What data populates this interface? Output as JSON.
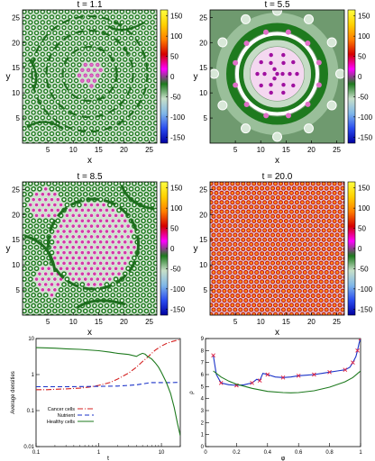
{
  "heatmaps": [
    {
      "title": "t = 1.1",
      "xlabel": "x",
      "ylabel": "y",
      "xticks": [
        "5",
        "10",
        "15",
        "20",
        "25"
      ],
      "yticks": [
        "5",
        "10",
        "15",
        "20",
        "25"
      ],
      "cbar_ticks": [
        "150",
        "100",
        "50",
        "0",
        "-50",
        "-100",
        "-150"
      ],
      "pattern": "early"
    },
    {
      "title": "t = 5.5",
      "xlabel": "x",
      "ylabel": "y",
      "xticks": [
        "5",
        "10",
        "15",
        "20",
        "25"
      ],
      "yticks": [
        "5",
        "10",
        "15",
        "20",
        "25"
      ],
      "cbar_ticks": [
        "150",
        "100",
        "50",
        "0",
        "-50",
        "-100",
        "-150"
      ],
      "pattern": "ring"
    },
    {
      "title": "t = 8.5",
      "xlabel": "x",
      "ylabel": "y",
      "xticks": [
        "5",
        "10",
        "15",
        "20",
        "25"
      ],
      "yticks": [
        "5",
        "10",
        "15",
        "20",
        "25"
      ],
      "cbar_ticks": [
        "150",
        "100",
        "50",
        "0",
        "-50",
        "-100",
        "-150"
      ],
      "pattern": "mixed"
    },
    {
      "title": "t = 20.0",
      "xlabel": "x",
      "ylabel": "y",
      "xticks": [
        "5",
        "10",
        "15",
        "20",
        "25"
      ],
      "yticks": [
        "5",
        "10",
        "15",
        "20",
        "25"
      ],
      "cbar_ticks": [
        "150",
        "100",
        "50",
        "0",
        "-50",
        "-100",
        "-150"
      ],
      "pattern": "lattice"
    }
  ],
  "colorbar": {
    "range": [
      -165,
      165
    ],
    "colors": [
      "#0000a0",
      "#2a4cf0",
      "#7fb7e8",
      "#c7dfc9",
      "#1e7a1e",
      "#ff00ff",
      "#d40000",
      "#ff7f00",
      "#ffd000",
      "#ffff40"
    ]
  },
  "chart_data": [
    {
      "type": "line",
      "xscale": "log",
      "yscale": "log",
      "xlim": [
        0.1,
        20
      ],
      "ylim": [
        0.01,
        10
      ],
      "xticks": [
        "0.1",
        "1",
        "10"
      ],
      "yticks": [
        "0.01",
        "0.1",
        "1",
        "10"
      ],
      "xlabel": "t",
      "ylabel": "Average densities",
      "legend_position": "center-left",
      "series": [
        {
          "name": "Cancer cells",
          "color": "#d42020",
          "dash": "dashdot",
          "x": [
            0.1,
            0.15,
            0.2,
            0.3,
            0.5,
            0.7,
            1,
            1.5,
            2,
            3,
            4,
            5,
            6,
            7,
            8,
            10,
            12,
            15,
            18,
            20
          ],
          "y": [
            0.38,
            0.38,
            0.39,
            0.4,
            0.42,
            0.45,
            0.5,
            0.6,
            0.75,
            1.1,
            1.6,
            2.3,
            3.0,
            3.9,
            4.8,
            6.2,
            7.3,
            8.3,
            9.0,
            9.4
          ]
        },
        {
          "name": "Nutrient",
          "color": "#1a32c8",
          "dash": "dash",
          "x": [
            0.1,
            0.3,
            1,
            2,
            3,
            4,
            5,
            6,
            7,
            8,
            10,
            15,
            20
          ],
          "y": [
            0.46,
            0.46,
            0.47,
            0.48,
            0.5,
            0.52,
            0.55,
            0.58,
            0.6,
            0.6,
            0.6,
            0.6,
            0.61
          ]
        },
        {
          "name": "Healthy cells",
          "color": "#1e7a1e",
          "dash": "solid",
          "x": [
            0.1,
            0.2,
            0.3,
            0.5,
            1,
            1.5,
            2,
            3,
            4,
            4.5,
            5,
            5.5,
            6,
            7,
            8,
            9,
            10,
            12,
            14,
            16,
            18,
            20
          ],
          "y": [
            5.6,
            5.4,
            5.2,
            5.0,
            4.6,
            4.2,
            3.9,
            3.6,
            3.2,
            3.6,
            3.9,
            3.7,
            3.2,
            2.7,
            2.1,
            1.6,
            1.15,
            0.6,
            0.3,
            0.12,
            0.045,
            0.02
          ]
        }
      ]
    },
    {
      "type": "line",
      "xlim": [
        0,
        1
      ],
      "ylim": [
        0,
        9
      ],
      "xticks": [
        "0",
        "0.2",
        "0.4",
        "0.6",
        "0.8",
        "1"
      ],
      "yticks": [
        "0",
        "1",
        "2",
        "3",
        "4",
        "5",
        "6",
        "7",
        "8",
        "9"
      ],
      "xlabel": "φ",
      "ylabel": "ρ",
      "series": [
        {
          "color": "#1a32c8",
          "dash": "solid",
          "markers": "x",
          "marker_color": "#e02040",
          "x": [
            0.05,
            0.07,
            0.1,
            0.15,
            0.2,
            0.25,
            0.3,
            0.33,
            0.35,
            0.37,
            0.4,
            0.45,
            0.5,
            0.55,
            0.6,
            0.65,
            0.7,
            0.75,
            0.8,
            0.85,
            0.9,
            0.93,
            0.95,
            0.97,
            0.98,
            0.99,
            1.0
          ],
          "y": [
            7.6,
            6.0,
            5.3,
            5.15,
            5.1,
            5.15,
            5.3,
            5.6,
            5.5,
            6.1,
            6.0,
            5.8,
            5.75,
            5.8,
            5.9,
            5.95,
            6.0,
            6.1,
            6.2,
            6.3,
            6.4,
            6.6,
            7.0,
            7.5,
            8.0,
            8.6,
            9.0
          ]
        },
        {
          "color": "#1e7a1e",
          "dash": "solid",
          "x": [
            0.05,
            0.1,
            0.15,
            0.2,
            0.3,
            0.4,
            0.5,
            0.55,
            0.6,
            0.7,
            0.8,
            0.9,
            0.95,
            1.0
          ],
          "y": [
            6.3,
            5.8,
            5.45,
            5.2,
            4.85,
            4.6,
            4.5,
            4.48,
            4.5,
            4.65,
            4.95,
            5.4,
            5.75,
            6.3
          ]
        }
      ]
    }
  ]
}
